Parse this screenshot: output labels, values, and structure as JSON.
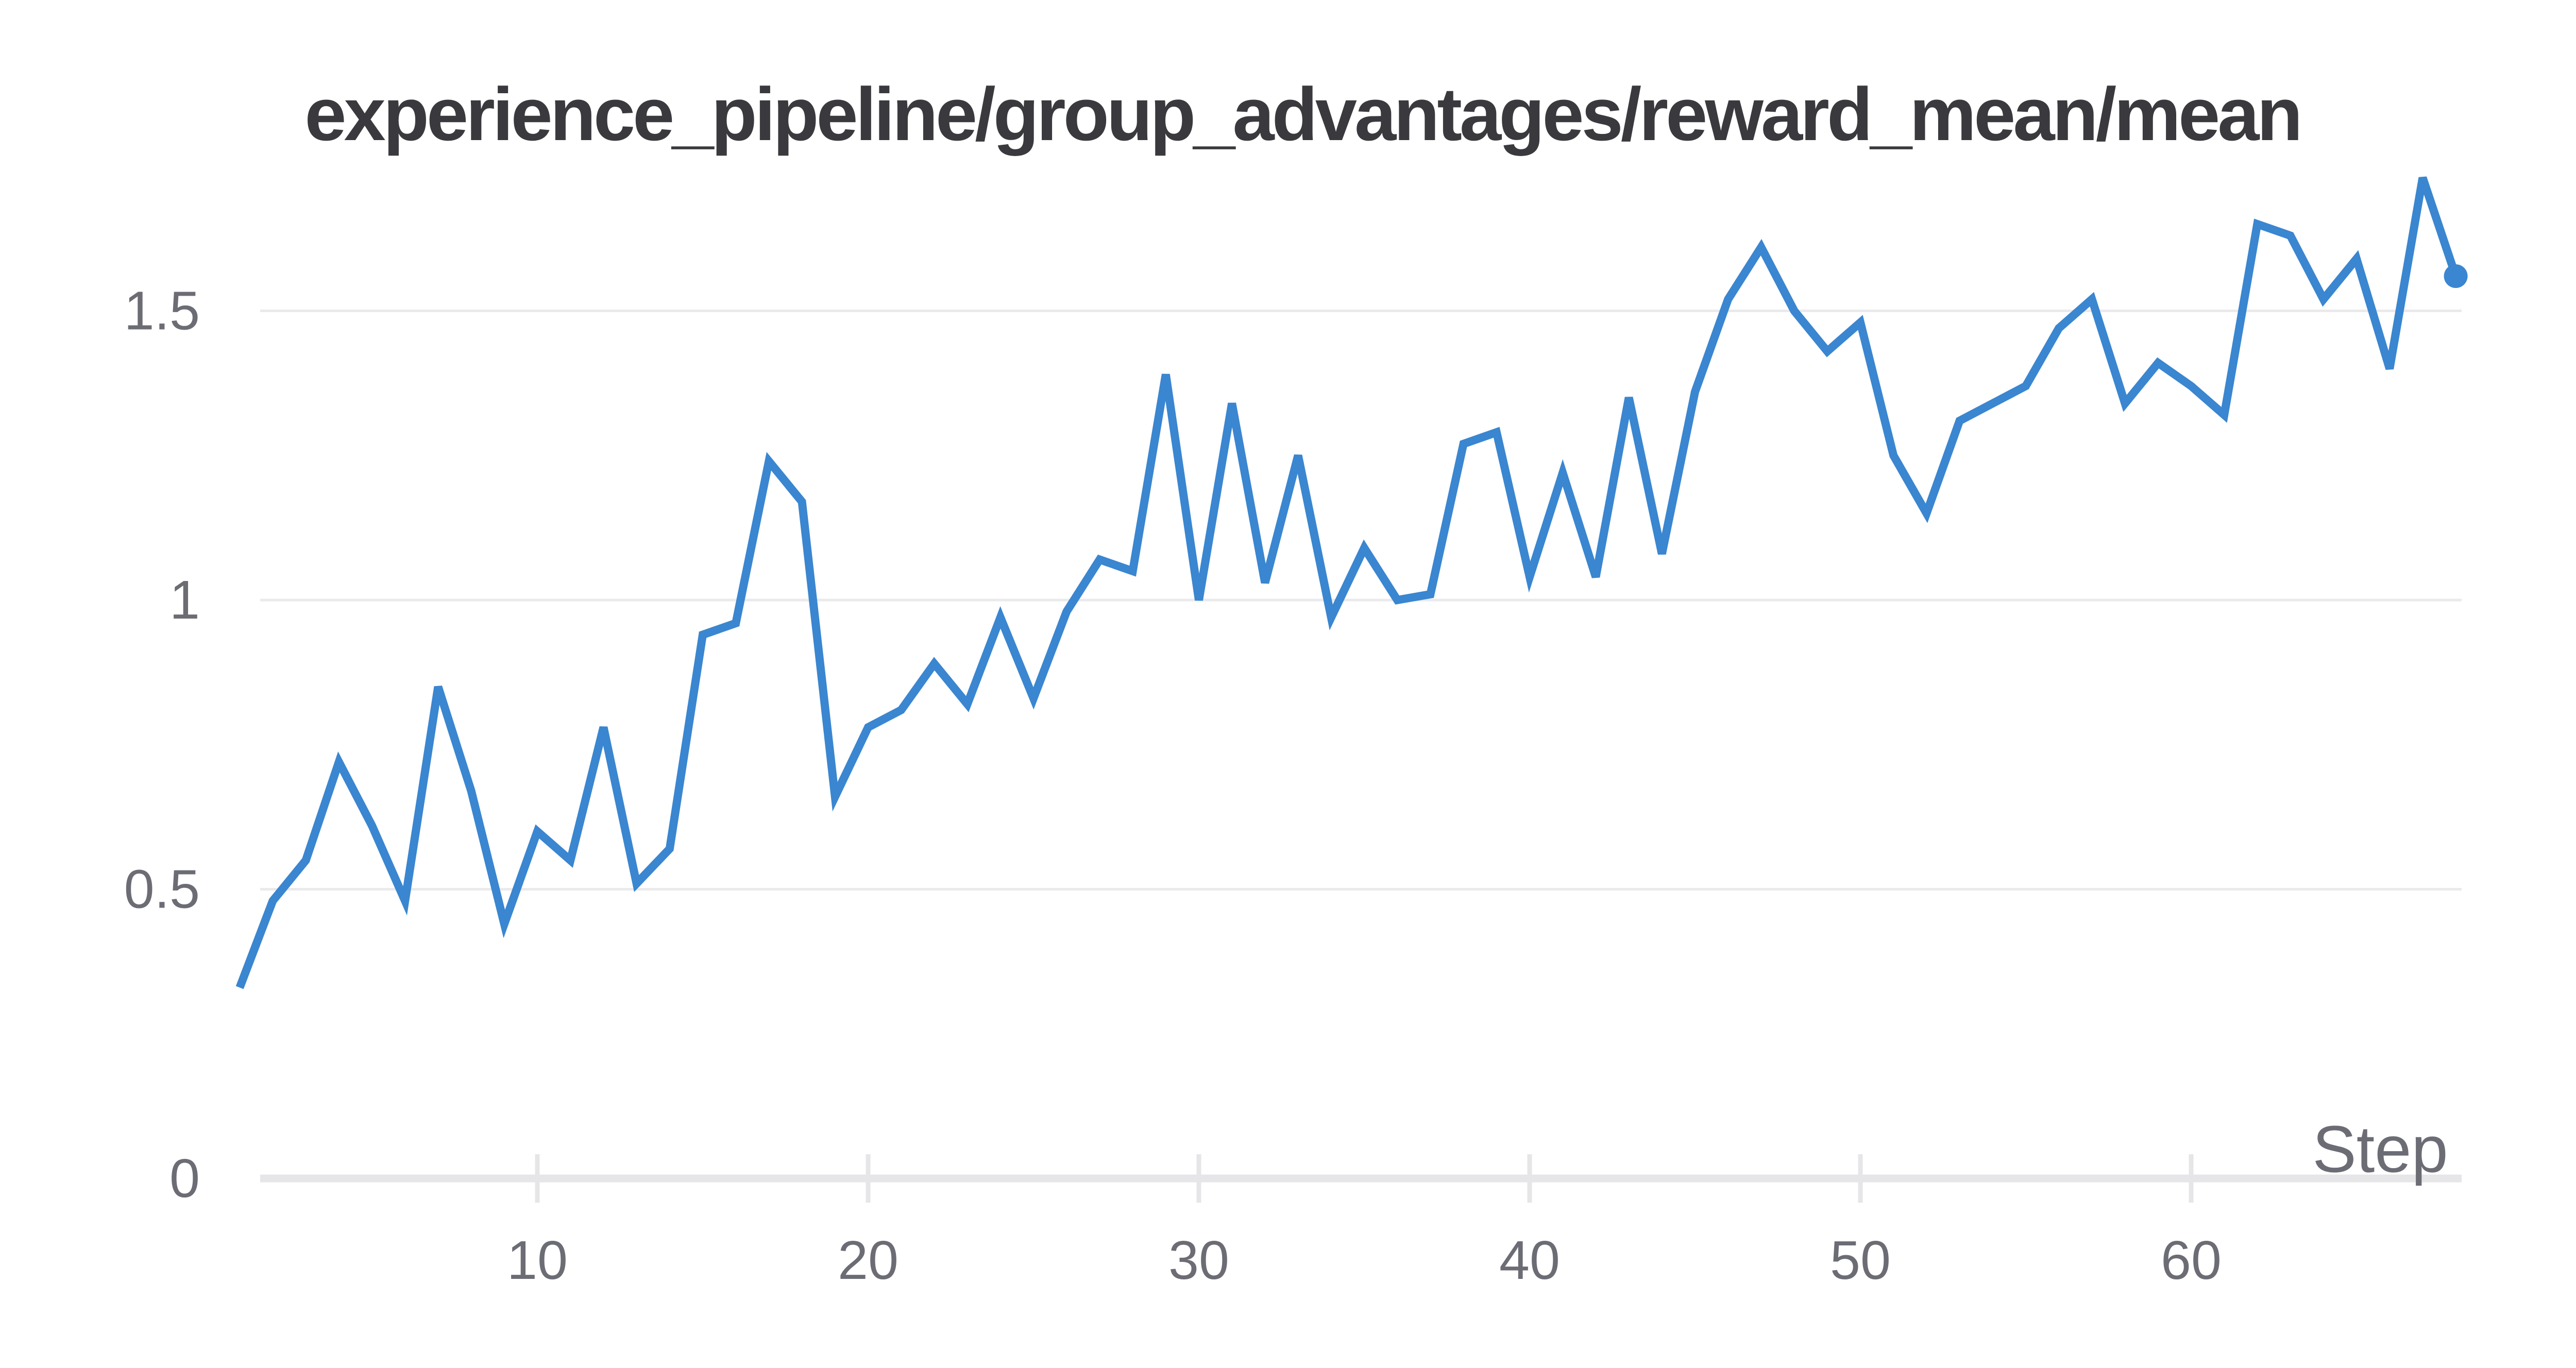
{
  "chart_data": {
    "type": "line",
    "title": "experience_pipeline/group_advantages/reward_mean/mean",
    "xlabel": "Step",
    "ylabel": "",
    "x": [
      1,
      2,
      3,
      4,
      5,
      6,
      7,
      8,
      9,
      10,
      11,
      12,
      13,
      14,
      15,
      16,
      17,
      18,
      19,
      20,
      21,
      22,
      23,
      24,
      25,
      26,
      27,
      28,
      29,
      30,
      31,
      32,
      33,
      34,
      35,
      36,
      37,
      38,
      39,
      40,
      41,
      42,
      43,
      44,
      45,
      46,
      47,
      48,
      49,
      50,
      51,
      52,
      53,
      54,
      55,
      56,
      57,
      58,
      59,
      60,
      61,
      62,
      63,
      64,
      65,
      66,
      67,
      68
    ],
    "series": [
      {
        "name": "reward_mean/mean",
        "values": [
          0.33,
          0.48,
          0.55,
          0.72,
          0.61,
          0.48,
          0.85,
          0.67,
          0.44,
          0.6,
          0.55,
          0.78,
          0.51,
          0.57,
          0.94,
          0.96,
          1.24,
          1.17,
          0.66,
          0.78,
          0.81,
          0.89,
          0.82,
          0.97,
          0.83,
          0.98,
          1.07,
          1.05,
          1.39,
          1.0,
          1.34,
          1.03,
          1.25,
          0.97,
          1.09,
          1.0,
          1.01,
          1.27,
          1.29,
          1.04,
          1.22,
          1.04,
          1.35,
          1.08,
          1.36,
          1.52,
          1.61,
          1.5,
          1.43,
          1.48,
          1.25,
          1.15,
          1.31,
          1.34,
          1.37,
          1.47,
          1.52,
          1.34,
          1.41,
          1.37,
          1.32,
          1.65,
          1.63,
          1.52,
          1.59,
          1.4,
          1.73,
          1.56
        ]
      }
    ],
    "xticks": [
      10,
      20,
      30,
      40,
      50,
      60
    ],
    "xtick_labels": [
      "10",
      "20",
      "30",
      "40",
      "50",
      "60"
    ],
    "yticks": [
      0,
      0.5,
      1,
      1.5
    ],
    "ytick_labels": [
      "0",
      "0.5",
      "1",
      "1.5"
    ],
    "xlim": [
      1,
      68
    ],
    "ylim": [
      0,
      1.75
    ],
    "grid": true,
    "legend": "none",
    "last_point_marker": true
  },
  "colors": {
    "line": "#3a86d0",
    "marker": "#3a86d0",
    "title_text": "#3a3a3e",
    "tick_text": "#6c6c75",
    "gridline": "#eaeaed",
    "axis_line": "#e6e6e9",
    "tick_mark": "#e6e6e9",
    "background": "#ffffff"
  }
}
